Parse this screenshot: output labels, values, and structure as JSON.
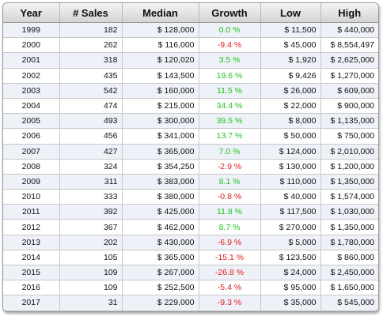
{
  "table": {
    "headers": [
      "Year",
      "# Sales",
      "Median",
      "Growth",
      "Low",
      "High"
    ],
    "colors": {
      "positive": "#1fc41f",
      "negative": "#e01b1b",
      "row_stripe": "#eef1f8"
    },
    "rows": [
      {
        "year": "1999",
        "sales": "182",
        "median": "$ 128,000",
        "growth": "0.0 %",
        "low": "$ 11,500",
        "high": "$ 440,000"
      },
      {
        "year": "2000",
        "sales": "262",
        "median": "$ 116,000",
        "growth": "-9.4 %",
        "low": "$ 45,000",
        "high": "$ 8,554,497"
      },
      {
        "year": "2001",
        "sales": "318",
        "median": "$ 120,020",
        "growth": "3.5 %",
        "low": "$ 1,920",
        "high": "$ 2,625,000"
      },
      {
        "year": "2002",
        "sales": "435",
        "median": "$ 143,500",
        "growth": "19.6 %",
        "low": "$ 9,426",
        "high": "$ 1,270,000"
      },
      {
        "year": "2003",
        "sales": "542",
        "median": "$ 160,000",
        "growth": "11.5 %",
        "low": "$ 26,000",
        "high": "$ 609,000"
      },
      {
        "year": "2004",
        "sales": "474",
        "median": "$ 215,000",
        "growth": "34.4 %",
        "low": "$ 22,000",
        "high": "$ 900,000"
      },
      {
        "year": "2005",
        "sales": "493",
        "median": "$ 300,000",
        "growth": "39.5 %",
        "low": "$ 8,000",
        "high": "$ 1,135,000"
      },
      {
        "year": "2006",
        "sales": "456",
        "median": "$ 341,000",
        "growth": "13.7 %",
        "low": "$ 50,000",
        "high": "$ 750,000"
      },
      {
        "year": "2007",
        "sales": "427",
        "median": "$ 365,000",
        "growth": "7.0 %",
        "low": "$ 124,000",
        "high": "$ 2,010,000"
      },
      {
        "year": "2008",
        "sales": "324",
        "median": "$ 354,250",
        "growth": "-2.9 %",
        "low": "$ 130,000",
        "high": "$ 1,200,000"
      },
      {
        "year": "2009",
        "sales": "311",
        "median": "$ 383,000",
        "growth": "8.1 %",
        "low": "$ 110,000",
        "high": "$ 1,350,000"
      },
      {
        "year": "2010",
        "sales": "333",
        "median": "$ 380,000",
        "growth": "-0.8 %",
        "low": "$ 40,000",
        "high": "$ 1,574,000"
      },
      {
        "year": "2011",
        "sales": "392",
        "median": "$ 425,000",
        "growth": "11.8 %",
        "low": "$ 117,500",
        "high": "$ 1,030,000"
      },
      {
        "year": "2012",
        "sales": "367",
        "median": "$ 462,000",
        "growth": "8.7 %",
        "low": "$ 270,000",
        "high": "$ 1,350,000"
      },
      {
        "year": "2013",
        "sales": "202",
        "median": "$ 430,000",
        "growth": "-6.9 %",
        "low": "$ 5,000",
        "high": "$ 1,780,000"
      },
      {
        "year": "2014",
        "sales": "105",
        "median": "$ 365,000",
        "growth": "-15.1 %",
        "low": "$ 123,500",
        "high": "$ 860,000"
      },
      {
        "year": "2015",
        "sales": "109",
        "median": "$ 267,000",
        "growth": "-26.8 %",
        "low": "$ 24,000",
        "high": "$ 2,450,000"
      },
      {
        "year": "2016",
        "sales": "109",
        "median": "$ 252,500",
        "growth": "-5.4 %",
        "low": "$ 95,000",
        "high": "$ 1,650,000"
      },
      {
        "year": "2017",
        "sales": "31",
        "median": "$ 229,000",
        "growth": "-9.3 %",
        "low": "$ 35,000",
        "high": "$ 545,000"
      }
    ]
  }
}
